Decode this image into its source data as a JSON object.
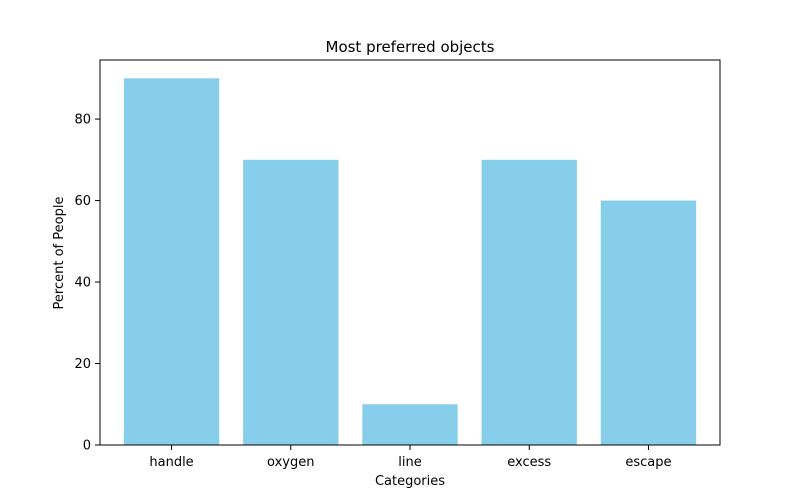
{
  "chart_data": {
    "type": "bar",
    "title": "Most preferred objects",
    "xlabel": "Categories",
    "ylabel": "Percent of People",
    "categories": [
      "handle",
      "oxygen",
      "line",
      "excess",
      "escape"
    ],
    "values": [
      90,
      70,
      10,
      70,
      60
    ],
    "ylim": [
      0,
      94.5
    ],
    "yticks": [
      0,
      20,
      40,
      60,
      80
    ],
    "bar_color": "#87ceeb",
    "grid": false,
    "legend": "none"
  }
}
